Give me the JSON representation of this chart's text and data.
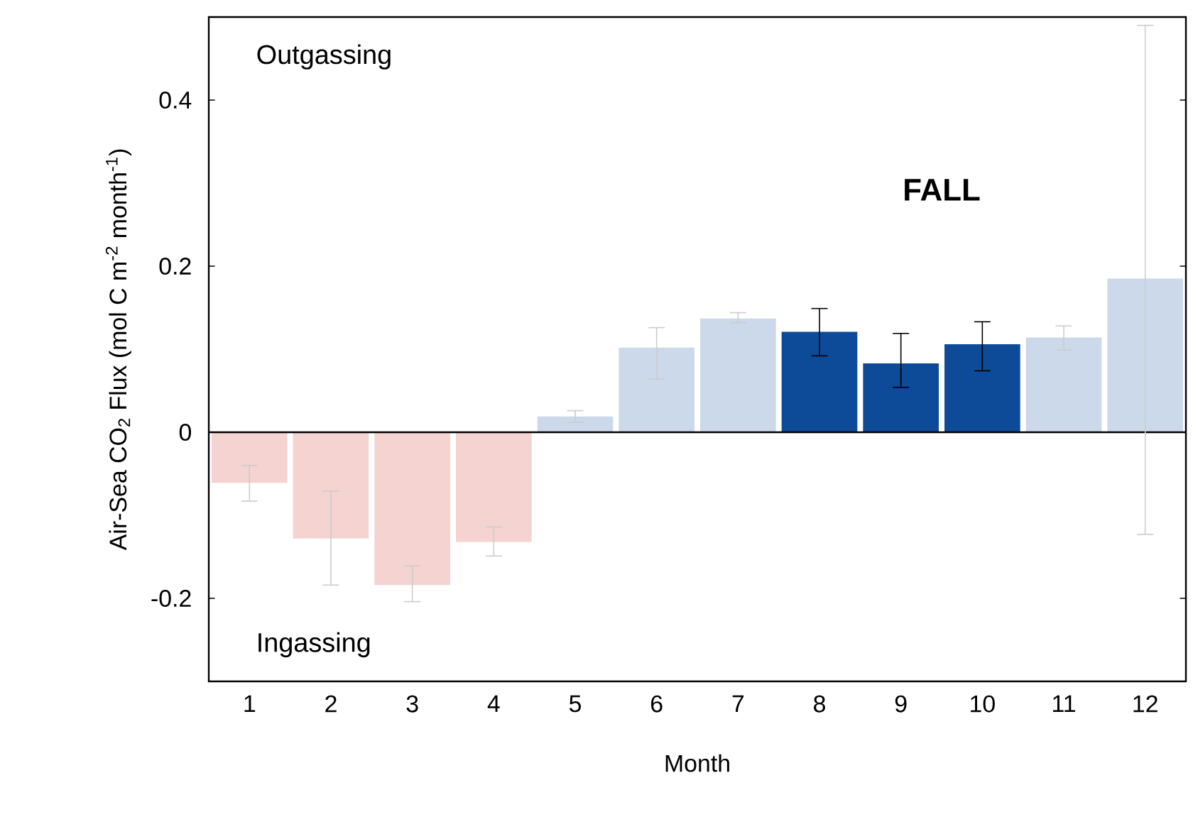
{
  "chart_data": {
    "type": "bar",
    "categories": [
      "1",
      "2",
      "3",
      "4",
      "5",
      "6",
      "7",
      "8",
      "9",
      "10",
      "11",
      "12"
    ],
    "values": [
      -0.061,
      -0.128,
      -0.184,
      -0.132,
      0.019,
      0.102,
      0.137,
      0.121,
      0.083,
      0.106,
      0.114,
      0.185
    ],
    "errors": [
      [
        -0.083,
        -0.04
      ],
      [
        -0.184,
        -0.071
      ],
      [
        -0.204,
        -0.161
      ],
      [
        -0.149,
        -0.114
      ],
      [
        0.012,
        0.026
      ],
      [
        0.064,
        0.126
      ],
      [
        0.132,
        0.144
      ],
      [
        0.092,
        0.149
      ],
      [
        0.054,
        0.119
      ],
      [
        0.074,
        0.133
      ],
      [
        0.099,
        0.128
      ],
      [
        -0.123,
        0.49
      ]
    ],
    "colors": [
      "#f4d3d0",
      "#f4d3d0",
      "#f4d3d0",
      "#f4d3d0",
      "#cbd9ea",
      "#cbd9ea",
      "#cbd9ea",
      "#0d4a98",
      "#0d4a98",
      "#0d4a98",
      "#cbd9ea",
      "#cbd9ea"
    ],
    "xlabel": "Month",
    "ylabel": "Air-Sea CO$_{2}$ Flux (mol C m$^{-2}$ month$^{-1}$)",
    "ylim": [
      -0.3,
      0.5
    ],
    "yticks": [
      {
        "value": -0.2,
        "label": "-0.2"
      },
      {
        "value": 0,
        "label": "0"
      },
      {
        "value": 0.2,
        "label": "0.2"
      },
      {
        "value": 0.4,
        "label": "0.4"
      }
    ],
    "ref_lines": [
      {
        "axis": "y",
        "value": 0,
        "color": "#000000"
      }
    ],
    "annotations": [
      "Outgassing",
      "Ingassing",
      "FALL"
    ]
  }
}
